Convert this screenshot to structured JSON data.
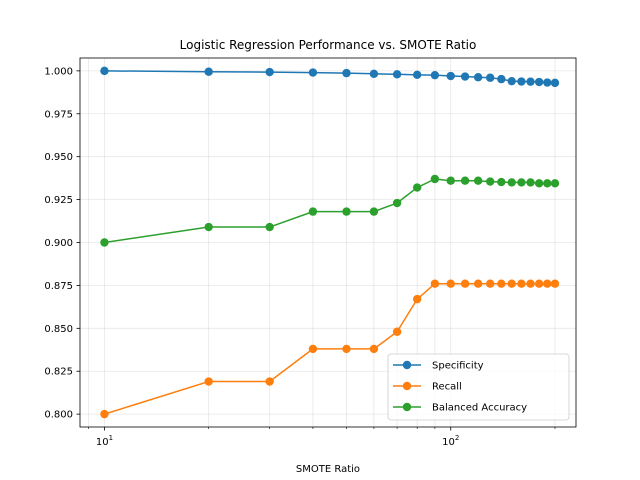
{
  "chart_data": {
    "type": "line",
    "title": "Logistic Regression Performance vs. SMOTE Ratio",
    "xlabel": "SMOTE Ratio",
    "ylabel": "",
    "xscale": "log",
    "xlim": [
      8.5,
      230
    ],
    "ylim": [
      0.7925,
      1.0075
    ],
    "x_tick_labels": [
      {
        "value": 10,
        "base": "10",
        "exp": "1"
      },
      {
        "value": 100,
        "base": "10",
        "exp": "2"
      }
    ],
    "y_ticks": [
      0.8,
      0.825,
      0.85,
      0.875,
      0.9,
      0.925,
      0.95,
      0.975,
      1.0
    ],
    "y_tick_labels": [
      "0.800",
      "0.825",
      "0.850",
      "0.875",
      "0.900",
      "0.925",
      "0.950",
      "0.975",
      "1.000"
    ],
    "grid": true,
    "legend_position": "lower-right",
    "x": [
      10,
      20,
      30,
      40,
      50,
      60,
      70,
      80,
      90,
      100,
      110,
      120,
      130,
      140,
      150,
      160,
      170,
      180,
      190,
      200
    ],
    "series": [
      {
        "name": "Specificity",
        "color": "#1f77b4",
        "values": [
          1.0,
          0.9995,
          0.9993,
          0.999,
          0.9987,
          0.9983,
          0.998,
          0.9977,
          0.9975,
          0.997,
          0.9967,
          0.9963,
          0.996,
          0.9952,
          0.994,
          0.9938,
          0.9937,
          0.9935,
          0.9932,
          0.993
        ]
      },
      {
        "name": "Recall",
        "color": "#ff7f0e",
        "values": [
          0.8,
          0.819,
          0.819,
          0.838,
          0.838,
          0.838,
          0.848,
          0.867,
          0.876,
          0.876,
          0.876,
          0.876,
          0.876,
          0.876,
          0.876,
          0.876,
          0.876,
          0.876,
          0.876,
          0.876
        ]
      },
      {
        "name": "Balanced Accuracy",
        "color": "#2ca02c",
        "values": [
          0.9,
          0.909,
          0.909,
          0.918,
          0.918,
          0.918,
          0.923,
          0.932,
          0.937,
          0.936,
          0.936,
          0.936,
          0.9355,
          0.9352,
          0.935,
          0.935,
          0.935,
          0.9345,
          0.9345,
          0.9345
        ]
      }
    ]
  }
}
